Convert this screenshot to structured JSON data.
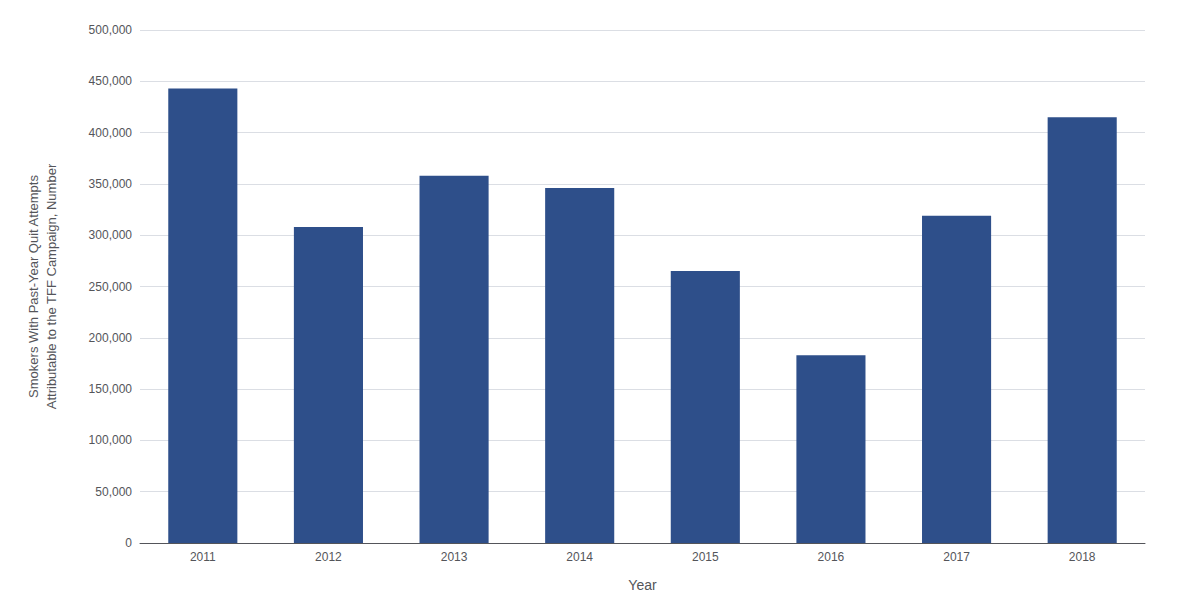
{
  "chart_data": {
    "type": "bar",
    "categories": [
      "2011",
      "2012",
      "2013",
      "2014",
      "2015",
      "2016",
      "2017",
      "2018"
    ],
    "values": [
      443000,
      308000,
      358000,
      346000,
      265000,
      183000,
      319000,
      415000
    ],
    "color": "#2e4f8a",
    "xlabel": "Year",
    "ylabel": "Smokers With Past-Year Quit Attempts\nAttributable to the TFF Campaign, Number",
    "ylim": [
      0,
      500000
    ],
    "yticks": [
      0,
      {
        "value": 50000,
        "label": "50,000"
      },
      {
        "value": 100000,
        "label": "100,000"
      },
      {
        "value": 150000,
        "label": "150,000"
      },
      {
        "value": 200000,
        "label": "200,000"
      },
      {
        "value": 250000,
        "label": "250,000"
      },
      {
        "value": 300000,
        "label": "300,000"
      },
      {
        "value": 350000,
        "label": "350,000"
      },
      {
        "value": 400000,
        "label": "400,000"
      },
      {
        "value": 450000,
        "label": "450,000"
      },
      {
        "value": 500000,
        "label": "500,000"
      }
    ],
    "grid": true
  }
}
